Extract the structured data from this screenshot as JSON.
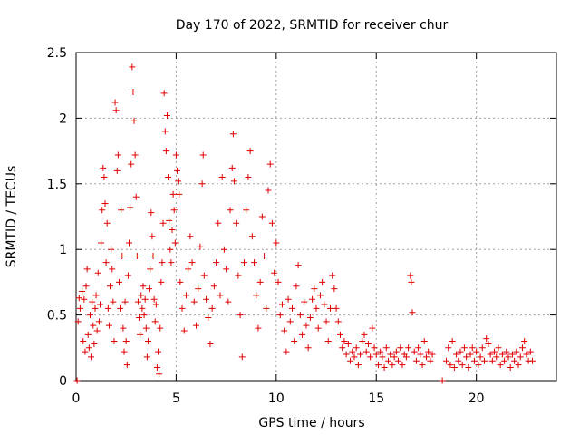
{
  "chart_data": {
    "type": "scatter",
    "title": "Day 170 of 2022, SRMTID for receiver chur",
    "xlabel": "GPS time / hours",
    "ylabel": "SRMTID / TECUs",
    "xlim": [
      0,
      24
    ],
    "ylim": [
      0,
      2.5
    ],
    "xticks": [
      {
        "value": 0,
        "label": "0"
      },
      {
        "value": 5,
        "label": "5"
      },
      {
        "value": 10,
        "label": "10"
      },
      {
        "value": 15,
        "label": "15"
      },
      {
        "value": 20,
        "label": "20"
      }
    ],
    "yticks": [
      {
        "value": 0,
        "label": "0"
      },
      {
        "value": 0.5,
        "label": "0.5"
      },
      {
        "value": 1,
        "label": "1"
      },
      {
        "value": 1.5,
        "label": "1.5"
      },
      {
        "value": 2,
        "label": "2"
      },
      {
        "value": 2.5,
        "label": "2.5"
      }
    ],
    "grid": true,
    "marker": "+",
    "marker_color": "#e00000",
    "series": [
      {
        "name": "SRMTID",
        "points": [
          [
            0.05,
            0.0
          ],
          [
            0.1,
            0.45
          ],
          [
            0.15,
            0.63
          ],
          [
            0.2,
            0.55
          ],
          [
            0.3,
            0.68
          ],
          [
            0.35,
            0.3
          ],
          [
            0.4,
            0.62
          ],
          [
            0.45,
            0.22
          ],
          [
            0.5,
            0.72
          ],
          [
            0.55,
            0.85
          ],
          [
            0.6,
            0.35
          ],
          [
            0.65,
            0.25
          ],
          [
            0.7,
            0.5
          ],
          [
            0.75,
            0.18
          ],
          [
            0.8,
            0.6
          ],
          [
            0.85,
            0.42
          ],
          [
            0.9,
            0.28
          ],
          [
            0.95,
            0.55
          ],
          [
            1.0,
            0.65
          ],
          [
            1.05,
            0.38
          ],
          [
            1.1,
            0.82
          ],
          [
            1.15,
            0.45
          ],
          [
            1.2,
            0.58
          ],
          [
            1.25,
            1.05
          ],
          [
            1.3,
            1.3
          ],
          [
            1.35,
            1.62
          ],
          [
            1.4,
            1.55
          ],
          [
            1.45,
            1.35
          ],
          [
            1.5,
            0.9
          ],
          [
            1.55,
            1.2
          ],
          [
            1.6,
            0.55
          ],
          [
            1.65,
            0.42
          ],
          [
            1.7,
            0.72
          ],
          [
            1.75,
            1.0
          ],
          [
            1.8,
            0.85
          ],
          [
            1.85,
            0.6
          ],
          [
            1.9,
            0.3
          ],
          [
            1.95,
            2.12
          ],
          [
            2.0,
            2.06
          ],
          [
            2.05,
            1.6
          ],
          [
            2.1,
            1.72
          ],
          [
            2.15,
            0.75
          ],
          [
            2.2,
            0.55
          ],
          [
            2.25,
            1.3
          ],
          [
            2.3,
            0.95
          ],
          [
            2.35,
            0.4
          ],
          [
            2.4,
            0.22
          ],
          [
            2.45,
            0.6
          ],
          [
            2.5,
            0.3
          ],
          [
            2.55,
            0.12
          ],
          [
            2.6,
            0.8
          ],
          [
            2.65,
            1.05
          ],
          [
            2.7,
            1.32
          ],
          [
            2.75,
            1.65
          ],
          [
            2.8,
            2.39
          ],
          [
            2.85,
            2.2
          ],
          [
            2.9,
            1.98
          ],
          [
            2.95,
            1.72
          ],
          [
            3.0,
            1.4
          ],
          [
            3.05,
            0.95
          ],
          [
            3.1,
            0.6
          ],
          [
            3.15,
            0.48
          ],
          [
            3.2,
            0.35
          ],
          [
            3.25,
            0.65
          ],
          [
            3.3,
            0.55
          ],
          [
            3.35,
            0.72
          ],
          [
            3.4,
            0.5
          ],
          [
            3.45,
            0.62
          ],
          [
            3.5,
            0.4
          ],
          [
            3.55,
            0.18
          ],
          [
            3.6,
            0.3
          ],
          [
            3.65,
            0.7
          ],
          [
            3.7,
            0.85
          ],
          [
            3.75,
            1.28
          ],
          [
            3.8,
            1.1
          ],
          [
            3.85,
            0.95
          ],
          [
            3.9,
            0.62
          ],
          [
            3.95,
            0.45
          ],
          [
            4.0,
            0.58
          ],
          [
            4.05,
            0.1
          ],
          [
            4.1,
            0.22
          ],
          [
            4.15,
            0.05
          ],
          [
            4.2,
            0.4
          ],
          [
            4.25,
            0.75
          ],
          [
            4.3,
            0.9
          ],
          [
            4.35,
            1.2
          ],
          [
            4.4,
            2.19
          ],
          [
            4.45,
            1.9
          ],
          [
            4.5,
            1.75
          ],
          [
            4.55,
            2.02
          ],
          [
            4.6,
            1.55
          ],
          [
            4.65,
            1.22
          ],
          [
            4.7,
            1.0
          ],
          [
            4.75,
            0.9
          ],
          [
            4.8,
            1.15
          ],
          [
            4.85,
            1.42
          ],
          [
            4.9,
            1.3
          ],
          [
            4.95,
            1.05
          ],
          [
            5.0,
            1.72
          ],
          [
            5.05,
            1.6
          ],
          [
            5.1,
            1.52
          ],
          [
            5.15,
            1.42
          ],
          [
            5.2,
            0.75
          ],
          [
            5.3,
            0.55
          ],
          [
            5.4,
            0.38
          ],
          [
            5.5,
            0.65
          ],
          [
            5.6,
            0.85
          ],
          [
            5.7,
            1.1
          ],
          [
            5.8,
            0.9
          ],
          [
            5.9,
            0.6
          ],
          [
            6.0,
            0.42
          ],
          [
            6.1,
            0.7
          ],
          [
            6.2,
            1.02
          ],
          [
            6.3,
            1.5
          ],
          [
            6.35,
            1.72
          ],
          [
            6.4,
            0.8
          ],
          [
            6.5,
            0.62
          ],
          [
            6.6,
            0.48
          ],
          [
            6.7,
            0.28
          ],
          [
            6.8,
            0.55
          ],
          [
            6.9,
            0.72
          ],
          [
            7.0,
            0.9
          ],
          [
            7.1,
            1.2
          ],
          [
            7.2,
            0.65
          ],
          [
            7.3,
            1.55
          ],
          [
            7.4,
            1.0
          ],
          [
            7.5,
            0.85
          ],
          [
            7.6,
            0.6
          ],
          [
            7.7,
            1.3
          ],
          [
            7.8,
            1.62
          ],
          [
            7.85,
            1.88
          ],
          [
            7.9,
            1.52
          ],
          [
            8.0,
            1.2
          ],
          [
            8.1,
            0.8
          ],
          [
            8.2,
            0.5
          ],
          [
            8.3,
            0.18
          ],
          [
            8.4,
            0.9
          ],
          [
            8.5,
            1.3
          ],
          [
            8.6,
            1.55
          ],
          [
            8.7,
            1.75
          ],
          [
            8.8,
            1.1
          ],
          [
            8.9,
            0.9
          ],
          [
            9.0,
            0.65
          ],
          [
            9.1,
            0.4
          ],
          [
            9.2,
            0.75
          ],
          [
            9.3,
            1.25
          ],
          [
            9.4,
            0.95
          ],
          [
            9.5,
            0.55
          ],
          [
            9.6,
            1.45
          ],
          [
            9.7,
            1.65
          ],
          [
            9.8,
            1.2
          ],
          [
            9.9,
            0.82
          ],
          [
            10.0,
            1.05
          ],
          [
            10.1,
            0.75
          ],
          [
            10.2,
            0.5
          ],
          [
            10.3,
            0.58
          ],
          [
            10.4,
            0.38
          ],
          [
            10.5,
            0.22
          ],
          [
            10.6,
            0.62
          ],
          [
            10.7,
            0.45
          ],
          [
            10.8,
            0.55
          ],
          [
            10.9,
            0.3
          ],
          [
            11.0,
            0.72
          ],
          [
            11.1,
            0.88
          ],
          [
            11.2,
            0.5
          ],
          [
            11.3,
            0.35
          ],
          [
            11.4,
            0.6
          ],
          [
            11.5,
            0.42
          ],
          [
            11.6,
            0.25
          ],
          [
            11.7,
            0.48
          ],
          [
            11.8,
            0.62
          ],
          [
            11.9,
            0.7
          ],
          [
            12.0,
            0.55
          ],
          [
            12.1,
            0.4
          ],
          [
            12.2,
            0.65
          ],
          [
            12.3,
            0.75
          ],
          [
            12.4,
            0.58
          ],
          [
            12.5,
            0.45
          ],
          [
            12.6,
            0.3
          ],
          [
            12.7,
            0.55
          ],
          [
            12.8,
            0.8
          ],
          [
            12.9,
            0.7
          ],
          [
            13.0,
            0.55
          ],
          [
            13.1,
            0.45
          ],
          [
            13.2,
            0.35
          ],
          [
            13.3,
            0.25
          ],
          [
            13.4,
            0.3
          ],
          [
            13.5,
            0.2
          ],
          [
            13.6,
            0.28
          ],
          [
            13.7,
            0.15
          ],
          [
            13.8,
            0.22
          ],
          [
            13.9,
            0.18
          ],
          [
            14.0,
            0.25
          ],
          [
            14.1,
            0.12
          ],
          [
            14.2,
            0.2
          ],
          [
            14.3,
            0.3
          ],
          [
            14.4,
            0.35
          ],
          [
            14.5,
            0.22
          ],
          [
            14.6,
            0.28
          ],
          [
            14.7,
            0.18
          ],
          [
            14.8,
            0.4
          ],
          [
            14.9,
            0.25
          ],
          [
            15.0,
            0.2
          ],
          [
            15.1,
            0.12
          ],
          [
            15.2,
            0.22
          ],
          [
            15.3,
            0.18
          ],
          [
            15.4,
            0.1
          ],
          [
            15.5,
            0.25
          ],
          [
            15.6,
            0.15
          ],
          [
            15.7,
            0.2
          ],
          [
            15.8,
            0.12
          ],
          [
            15.9,
            0.18
          ],
          [
            16.0,
            0.22
          ],
          [
            16.1,
            0.15
          ],
          [
            16.2,
            0.25
          ],
          [
            16.3,
            0.12
          ],
          [
            16.4,
            0.2
          ],
          [
            16.5,
            0.18
          ],
          [
            16.6,
            0.25
          ],
          [
            16.7,
            0.8
          ],
          [
            16.75,
            0.75
          ],
          [
            16.8,
            0.52
          ],
          [
            16.9,
            0.22
          ],
          [
            17.0,
            0.15
          ],
          [
            17.1,
            0.25
          ],
          [
            17.2,
            0.2
          ],
          [
            17.3,
            0.12
          ],
          [
            17.4,
            0.3
          ],
          [
            17.5,
            0.18
          ],
          [
            17.6,
            0.22
          ],
          [
            17.7,
            0.15
          ],
          [
            17.8,
            0.2
          ],
          [
            18.3,
            0.0
          ],
          [
            18.5,
            0.15
          ],
          [
            18.6,
            0.25
          ],
          [
            18.7,
            0.12
          ],
          [
            18.8,
            0.3
          ],
          [
            18.9,
            0.1
          ],
          [
            19.0,
            0.2
          ],
          [
            19.1,
            0.15
          ],
          [
            19.2,
            0.22
          ],
          [
            19.3,
            0.12
          ],
          [
            19.4,
            0.25
          ],
          [
            19.5,
            0.18
          ],
          [
            19.6,
            0.1
          ],
          [
            19.7,
            0.2
          ],
          [
            19.8,
            0.25
          ],
          [
            19.9,
            0.15
          ],
          [
            20.0,
            0.22
          ],
          [
            20.1,
            0.12
          ],
          [
            20.2,
            0.18
          ],
          [
            20.3,
            0.25
          ],
          [
            20.4,
            0.15
          ],
          [
            20.5,
            0.32
          ],
          [
            20.6,
            0.28
          ],
          [
            20.7,
            0.2
          ],
          [
            20.8,
            0.15
          ],
          [
            20.9,
            0.22
          ],
          [
            21.0,
            0.18
          ],
          [
            21.1,
            0.25
          ],
          [
            21.2,
            0.12
          ],
          [
            21.3,
            0.2
          ],
          [
            21.4,
            0.15
          ],
          [
            21.5,
            0.22
          ],
          [
            21.6,
            0.18
          ],
          [
            21.7,
            0.1
          ],
          [
            21.8,
            0.2
          ],
          [
            21.9,
            0.15
          ],
          [
            22.0,
            0.22
          ],
          [
            22.1,
            0.12
          ],
          [
            22.2,
            0.18
          ],
          [
            22.3,
            0.25
          ],
          [
            22.4,
            0.3
          ],
          [
            22.5,
            0.2
          ],
          [
            22.6,
            0.15
          ],
          [
            22.7,
            0.22
          ],
          [
            22.8,
            0.15
          ]
        ]
      }
    ]
  }
}
